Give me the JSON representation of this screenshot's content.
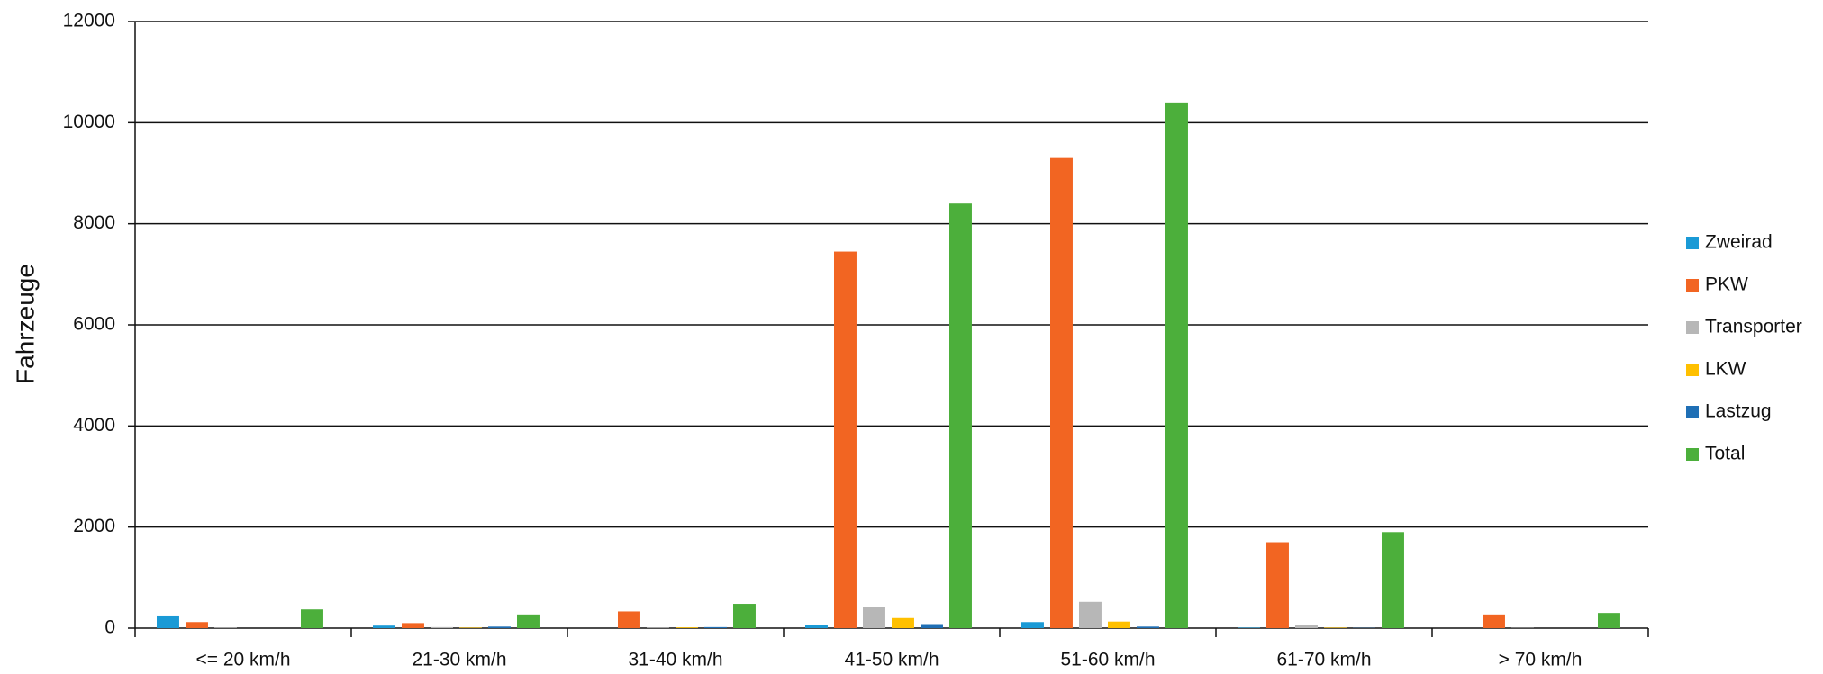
{
  "chart_data": {
    "type": "bar",
    "y_label": "Fahrzeuge",
    "categories": [
      "<= 20 km/h",
      "21-30 km/h",
      "31-40 km/h",
      "41-50 km/h",
      "51-60 km/h",
      "61-70 km/h",
      "> 70 km/h"
    ],
    "series": [
      {
        "name": "Zweirad",
        "color": "#1a9ad6",
        "values": [
          250,
          50,
          0,
          60,
          120,
          10,
          0
        ]
      },
      {
        "name": "PKW",
        "color": "#f26522",
        "values": [
          120,
          100,
          330,
          7450,
          9300,
          1700,
          270
        ]
      },
      {
        "name": "Transporter",
        "color": "#b7b7b7",
        "values": [
          10,
          20,
          10,
          420,
          520,
          60,
          5
        ]
      },
      {
        "name": "LKW",
        "color": "#ffc000",
        "values": [
          0,
          10,
          15,
          200,
          130,
          10,
          0
        ]
      },
      {
        "name": "Lastzug",
        "color": "#1f6fb5",
        "values": [
          0,
          30,
          20,
          80,
          30,
          5,
          0
        ]
      },
      {
        "name": "Total",
        "color": "#4caf3b",
        "values": [
          370,
          270,
          480,
          8400,
          10400,
          1900,
          300
        ]
      }
    ],
    "ylim": [
      0,
      12000
    ],
    "yticks": [
      0,
      2000,
      4000,
      6000,
      8000,
      10000,
      12000
    ],
    "grid": true,
    "legend": "right"
  }
}
